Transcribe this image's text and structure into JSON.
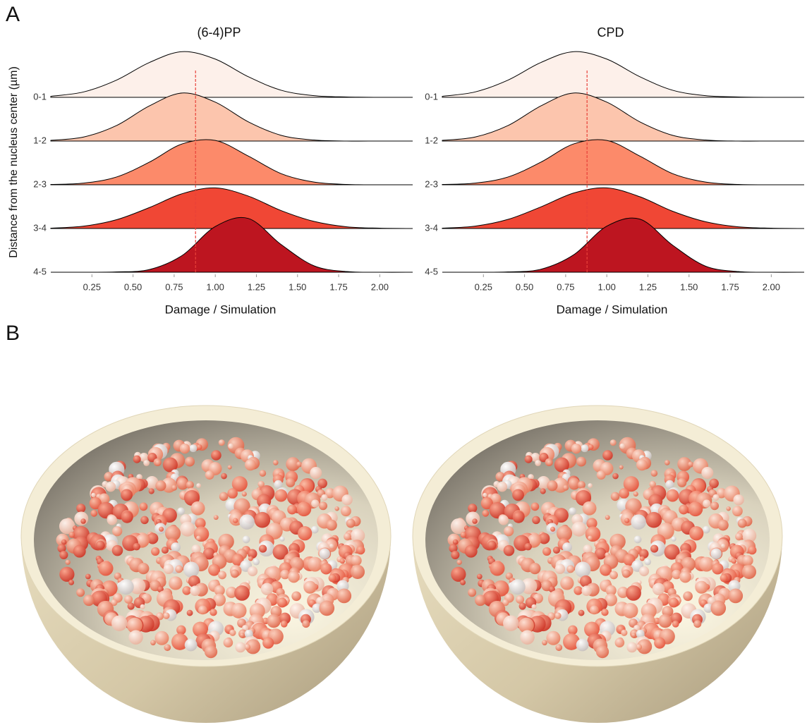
{
  "panel_a": "A",
  "panel_b": "B",
  "chart_data": [
    {
      "type": "ridgeline",
      "title": "(6-4)PP",
      "x_label": "Damage / Simulation",
      "y_label": "Distance from the nucleus center (µm)",
      "x": [
        0,
        0.2,
        0.4,
        0.6,
        0.8,
        1.0,
        1.2,
        1.4,
        1.6,
        1.8,
        2.0,
        2.2
      ],
      "series": [
        {
          "name": "0-1",
          "color": "#fdf0ea",
          "values": [
            0.03,
            0.16,
            0.51,
            1.03,
            1.35,
            1.13,
            0.61,
            0.21,
            0.05,
            0.01,
            0,
            0
          ]
        },
        {
          "name": "1-2",
          "color": "#fcc5ad",
          "values": [
            0.02,
            0.12,
            0.46,
            1.04,
            1.42,
            1.15,
            0.57,
            0.17,
            0.03,
            0,
            0,
            0
          ]
        },
        {
          "name": "2-3",
          "color": "#fc8a6a",
          "values": [
            0.01,
            0.05,
            0.23,
            0.67,
            1.21,
            1.31,
            0.85,
            0.33,
            0.08,
            0.01,
            0,
            0
          ]
        },
        {
          "name": "3-4",
          "color": "#f04735",
          "values": [
            0.01,
            0.07,
            0.26,
            0.62,
            1.03,
            1.2,
            0.96,
            0.53,
            0.21,
            0.05,
            0.01,
            0
          ]
        },
        {
          "name": "4-5",
          "color": "#bd1520",
          "values": [
            0,
            0,
            0.01,
            0.08,
            0.5,
            1.35,
            1.59,
            0.82,
            0.19,
            0.02,
            0,
            0
          ]
        }
      ],
      "xlim": [
        0,
        2.2
      ],
      "xticks": [
        0.25,
        {
          "value": 0.5,
          "label": "0.50"
        },
        0.75,
        {
          "value": 1,
          "label": "1.00"
        },
        1.25,
        {
          "value": 1.5,
          "label": "1.50"
        },
        1.75,
        {
          "value": 2,
          "label": "2.00"
        }
      ],
      "reference_line": 0.88,
      "reference_color": "#e8413a"
    },
    {
      "type": "ridgeline",
      "title": "CPD",
      "x_label": "Damage / Simulation",
      "x": [
        0,
        0.2,
        0.4,
        0.6,
        0.8,
        1.0,
        1.2,
        1.4,
        1.6,
        1.8,
        2.0,
        2.2
      ],
      "series": [
        {
          "name": "0-1",
          "color": "#fdf0ea",
          "values": [
            0.03,
            0.16,
            0.51,
            1.03,
            1.35,
            1.13,
            0.61,
            0.21,
            0.05,
            0.01,
            0,
            0
          ]
        },
        {
          "name": "1-2",
          "color": "#fcc5ad",
          "values": [
            0.02,
            0.12,
            0.46,
            1.04,
            1.42,
            1.15,
            0.57,
            0.17,
            0.03,
            0,
            0,
            0
          ]
        },
        {
          "name": "2-3",
          "color": "#fc8a6a",
          "values": [
            0.01,
            0.05,
            0.23,
            0.67,
            1.21,
            1.31,
            0.85,
            0.33,
            0.08,
            0.01,
            0,
            0
          ]
        },
        {
          "name": "3-4",
          "color": "#f04735",
          "values": [
            0.01,
            0.07,
            0.27,
            0.64,
            1.05,
            1.2,
            0.94,
            0.51,
            0.2,
            0.05,
            0.01,
            0
          ]
        },
        {
          "name": "4-5",
          "color": "#bd1520",
          "values": [
            0,
            0,
            0.01,
            0.09,
            0.52,
            1.36,
            1.57,
            0.8,
            0.18,
            0.02,
            0,
            0
          ]
        }
      ],
      "xlim": [
        0,
        2.2
      ],
      "xticks": [
        0.25,
        {
          "value": 0.5,
          "label": "0.50"
        },
        0.75,
        {
          "value": 1,
          "label": "1.00"
        },
        1.25,
        {
          "value": 1.5,
          "label": "1.50"
        },
        1.75,
        {
          "value": 2,
          "label": "2.00"
        }
      ],
      "reference_line": 0.88,
      "reference_color": "#e8413a"
    }
  ]
}
